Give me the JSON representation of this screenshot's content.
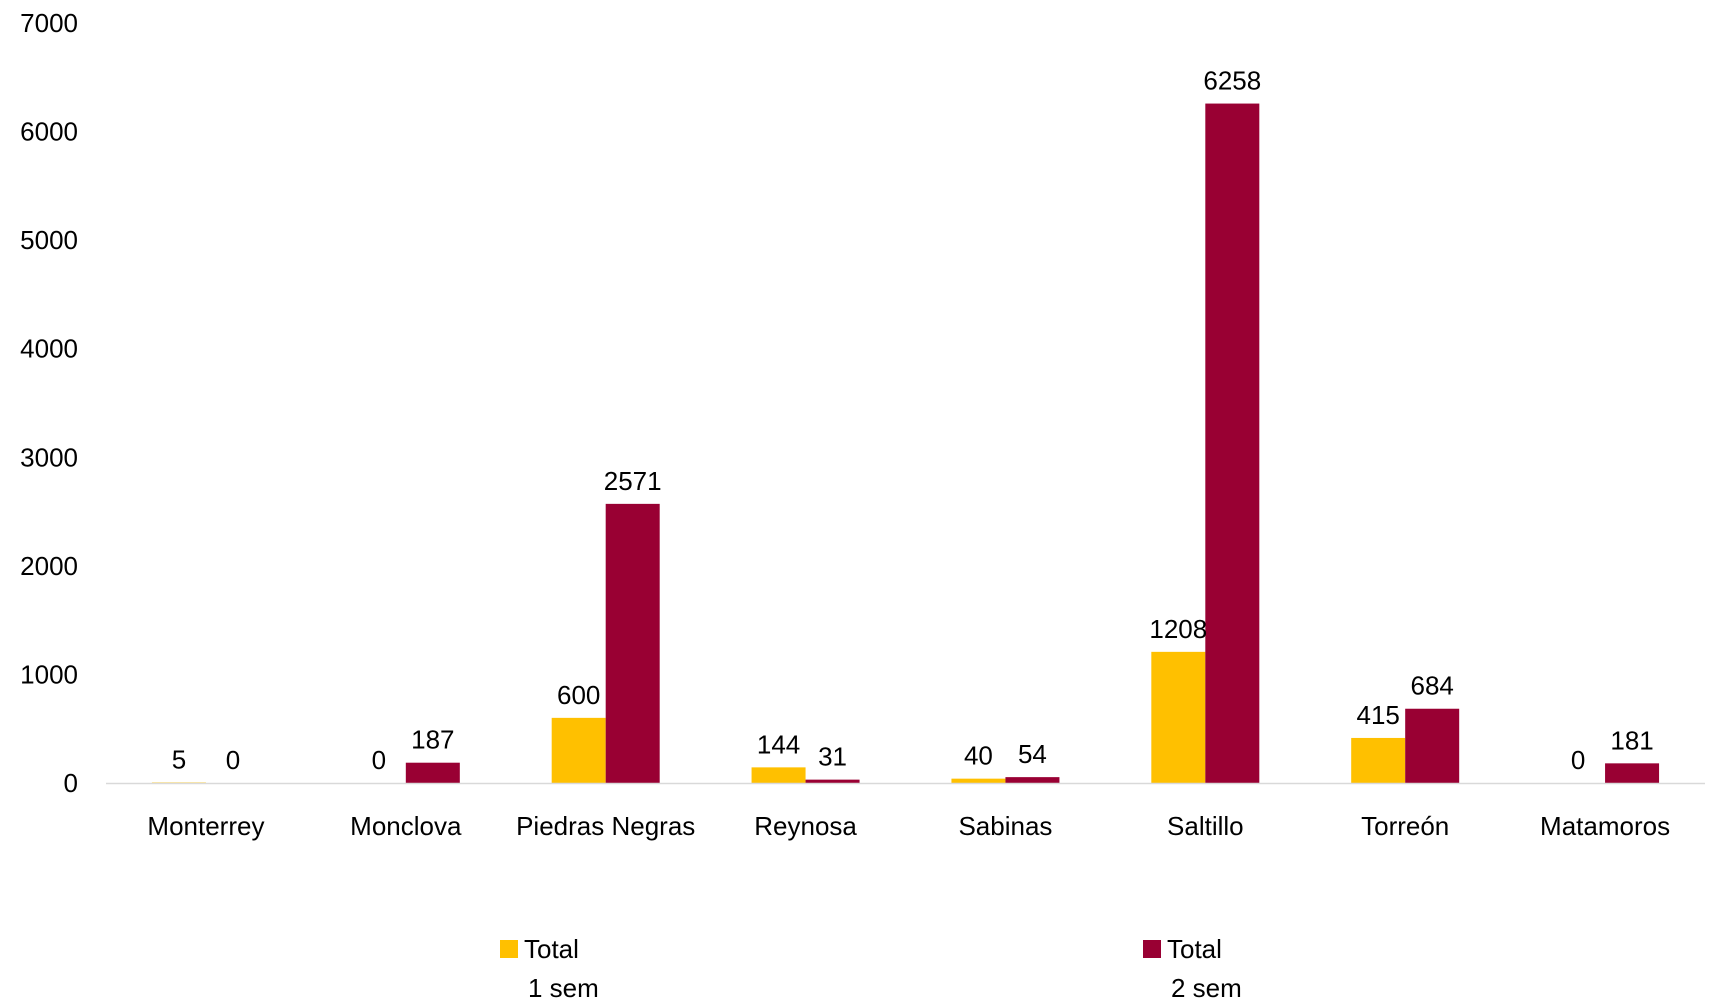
{
  "chart_data": {
    "type": "bar",
    "title": "",
    "xlabel": "",
    "ylabel": "",
    "categories": [
      "Monterrey",
      "Monclova",
      "Piedras Negras",
      "Reynosa",
      "Sabinas",
      "Saltillo",
      "Torreón",
      "Matamoros"
    ],
    "series": [
      {
        "name": "Total 1 sem",
        "legend_lines": [
          "Total",
          "1 sem"
        ],
        "color": "#FFC000",
        "values": [
          5,
          0,
          600,
          144,
          40,
          1208,
          415,
          0
        ]
      },
      {
        "name": "Total 2 sem",
        "legend_lines": [
          "Total",
          "2 sem"
        ],
        "color": "#990033",
        "values": [
          0,
          187,
          2571,
          31,
          54,
          6258,
          684,
          181
        ]
      }
    ],
    "ylim": [
      0,
      7000
    ],
    "yticks": [
      0,
      1000,
      2000,
      3000,
      4000,
      5000,
      6000,
      7000
    ],
    "grid": false,
    "data_labels": true,
    "legend_position": "bottom"
  }
}
